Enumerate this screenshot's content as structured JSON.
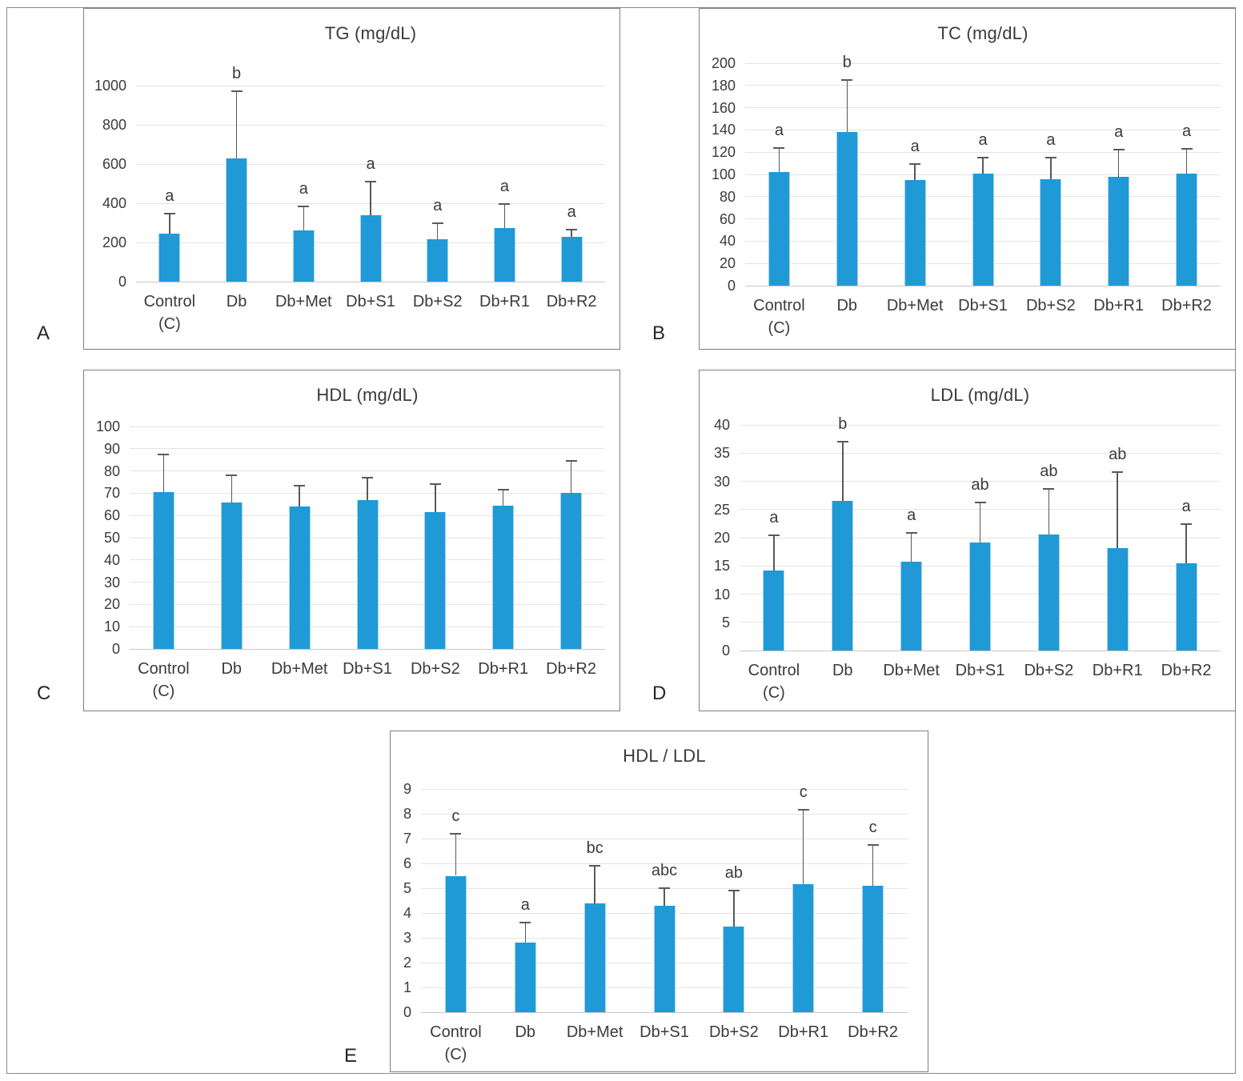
{
  "figure": {
    "description": "Five-panel bar chart figure of serum lipid profile measurements across seven treatment groups with upper error bars and significance letters",
    "panel_count": 5
  },
  "colors": {
    "bar": "#1F9AD7",
    "bar_edge": "#A9D2ED",
    "grid": "#E3E3E3",
    "axis": "#C8C8C8",
    "error": "#595959",
    "text": "#3B3B3B",
    "panel_border": "#7F7F7F"
  },
  "chart_data": [
    {
      "type": "bar",
      "panel_label": "A",
      "title": "TG (mg/dL)",
      "categories": [
        "Control\n(C)",
        "Db",
        "Db+Met",
        "Db+S1",
        "Db+S2",
        "Db+R1",
        "Db+R2"
      ],
      "values": [
        245,
        630,
        260,
        340,
        215,
        275,
        230
      ],
      "error_top": [
        345,
        970,
        385,
        510,
        300,
        395,
        265
      ],
      "sig_letters": [
        "a",
        "b",
        "a",
        "a",
        "a",
        "a",
        "a"
      ],
      "ylim": [
        0,
        1000
      ],
      "yticks": [
        0,
        200,
        400,
        600,
        800,
        1000
      ],
      "grid": true,
      "legend": "none"
    },
    {
      "type": "bar",
      "panel_label": "B",
      "title": "TC (mg/dL)",
      "categories": [
        "Control\n(C)",
        "Db",
        "Db+Met",
        "Db+S1",
        "Db+S2",
        "Db+R1",
        "Db+R2"
      ],
      "values": [
        102,
        138,
        95,
        101,
        96,
        98,
        101
      ],
      "error_top": [
        124,
        185,
        109,
        115,
        115,
        122,
        123
      ],
      "sig_letters": [
        "a",
        "b",
        "a",
        "a",
        "a",
        "a",
        "a"
      ],
      "ylim": [
        0,
        200
      ],
      "yticks": [
        0,
        20,
        40,
        60,
        80,
        100,
        120,
        140,
        160,
        180,
        200
      ],
      "grid": true,
      "legend": "none"
    },
    {
      "type": "bar",
      "panel_label": "C",
      "title": "HDL (mg/dL)",
      "categories": [
        "Control\n(C)",
        "Db",
        "Db+Met",
        "Db+S1",
        "Db+S2",
        "Db+R1",
        "Db+R2"
      ],
      "values": [
        70.5,
        66,
        64,
        67,
        61.5,
        64.5,
        70
      ],
      "error_top": [
        87.5,
        78,
        73.5,
        77,
        74,
        71.5,
        84.5
      ],
      "sig_letters": [
        "",
        "",
        "",
        "",
        "",
        "",
        ""
      ],
      "ylim": [
        0,
        100
      ],
      "yticks": [
        0,
        10,
        20,
        30,
        40,
        50,
        60,
        70,
        80,
        90,
        100
      ],
      "grid": true,
      "legend": "none"
    },
    {
      "type": "bar",
      "panel_label": "D",
      "title": "LDL (mg/dL)",
      "categories": [
        "Control\n(C)",
        "Db",
        "Db+Met",
        "Db+S1",
        "Db+S2",
        "Db+R1",
        "Db+R2"
      ],
      "values": [
        14.2,
        26.5,
        15.7,
        19.2,
        20.5,
        18.2,
        15.5
      ],
      "error_top": [
        20.4,
        37,
        20.8,
        26.3,
        28.6,
        31.6,
        22.4
      ],
      "sig_letters": [
        "a",
        "b",
        "a",
        "ab",
        "ab",
        "ab",
        "a"
      ],
      "ylim": [
        0,
        40
      ],
      "yticks": [
        0,
        5,
        10,
        15,
        20,
        25,
        30,
        35,
        40
      ],
      "grid": true,
      "legend": "none"
    },
    {
      "type": "bar",
      "panel_label": "E",
      "title": "HDL / LDL",
      "categories": [
        "Control\n(C)",
        "Db",
        "Db+Met",
        "Db+S1",
        "Db+S2",
        "Db+R1",
        "Db+R2"
      ],
      "values": [
        5.5,
        2.8,
        4.4,
        4.3,
        3.45,
        5.15,
        5.1
      ],
      "error_top": [
        7.2,
        3.6,
        5.9,
        5.0,
        4.9,
        8.15,
        6.75
      ],
      "sig_letters": [
        "c",
        "a",
        "bc",
        "abc",
        "ab",
        "c",
        "c"
      ],
      "ylim": [
        0,
        9
      ],
      "yticks": [
        0,
        1,
        2,
        3,
        4,
        5,
        6,
        7,
        8,
        9
      ],
      "grid": true,
      "legend": "none"
    }
  ]
}
